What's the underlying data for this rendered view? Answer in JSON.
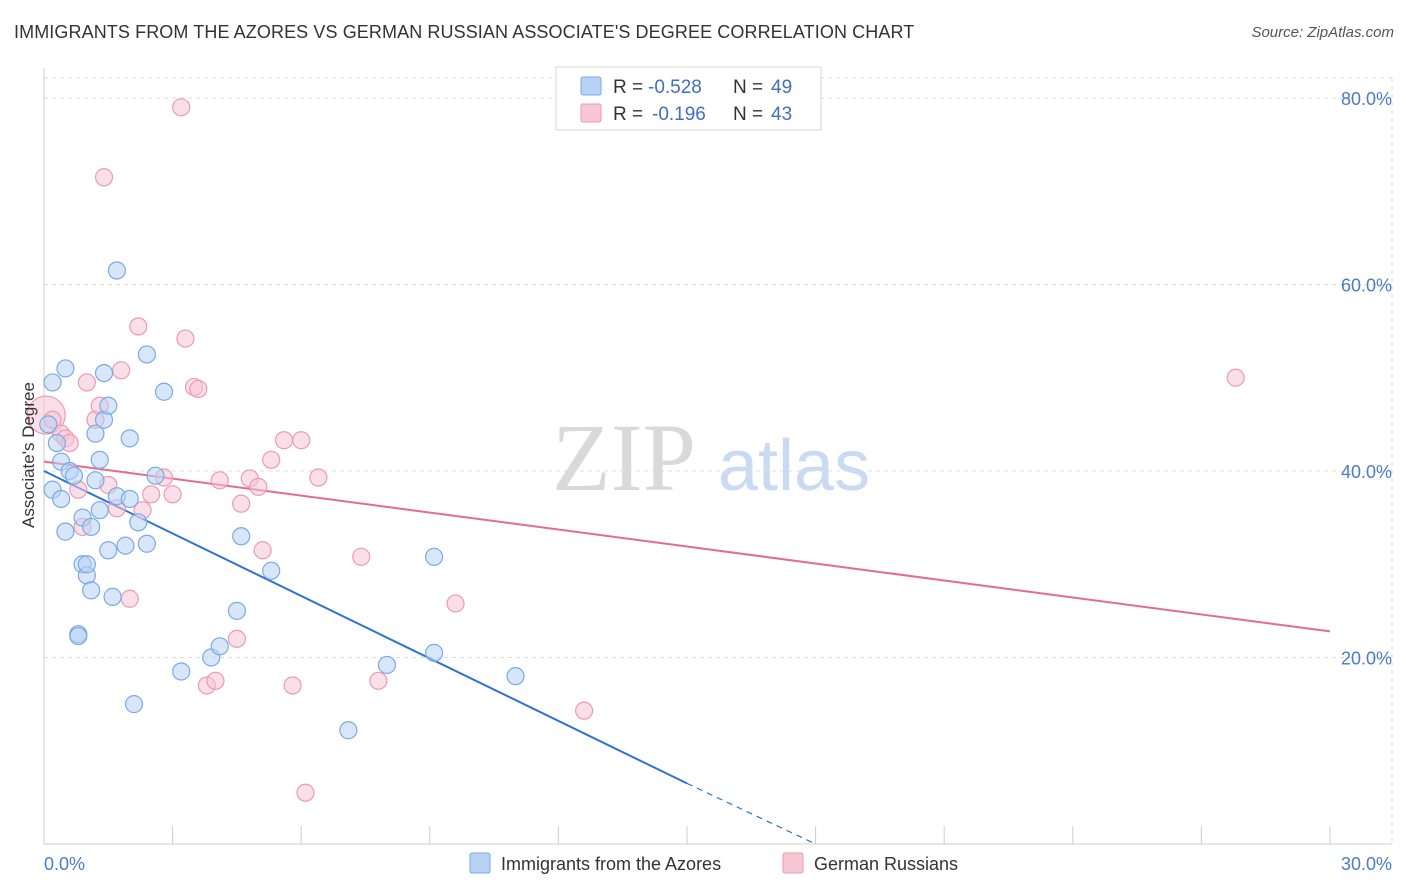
{
  "title": "IMMIGRANTS FROM THE AZORES VS GERMAN RUSSIAN ASSOCIATE'S DEGREE CORRELATION CHART",
  "source": "Source: ZipAtlas.com",
  "watermark": {
    "zip": "ZIP",
    "atlas": "atlas"
  },
  "colors": {
    "blue_fill": "#b8d2f4",
    "blue_stroke": "#7aaae6",
    "blue_line": "#2f73d0",
    "pink_fill": "#f8c5d5",
    "pink_stroke": "#ec9ab3",
    "pink_line": "#e56b94",
    "grid": "#dddddd",
    "tick_text": "#4a7cc9"
  },
  "legend": {
    "r_label": "R =",
    "n_label": "N =",
    "rows": [
      {
        "r": "-0.528",
        "n": "49"
      },
      {
        "r": "-0.196",
        "n": "43"
      }
    ]
  },
  "chart_data": {
    "type": "scatter",
    "title": "IMMIGRANTS FROM THE AZORES VS GERMAN RUSSIAN ASSOCIATE'S DEGREE CORRELATION CHART",
    "xlabel": "",
    "ylabel": "Associate's Degree",
    "xlim": [
      0,
      30
    ],
    "ylim": [
      0,
      80
    ],
    "x_tick_labels": [
      "0.0%",
      "30.0%"
    ],
    "y_ticks": [
      20,
      40,
      60,
      80
    ],
    "y_tick_labels": [
      "20.0%",
      "40.0%",
      "60.0%",
      "80.0%"
    ],
    "grid": true,
    "legend_position": "top-center",
    "series": [
      {
        "name": "Immigrants from the Azores",
        "r": -0.528,
        "n": 49,
        "trend": {
          "x0": 0,
          "y0": 40.0,
          "x1": 15.0,
          "y1": 6.5,
          "dash_to_x": 18.0,
          "dash_to_y": 0
        },
        "points": [
          [
            0.1,
            45.0
          ],
          [
            0.2,
            49.5
          ],
          [
            0.3,
            43.0
          ],
          [
            0.4,
            41.0
          ],
          [
            0.2,
            38.0
          ],
          [
            0.4,
            37.0
          ],
          [
            0.5,
            51.0
          ],
          [
            0.6,
            40.0
          ],
          [
            0.7,
            39.5
          ],
          [
            0.5,
            33.5
          ],
          [
            0.8,
            22.5
          ],
          [
            0.9,
            30.0
          ],
          [
            0.8,
            22.3
          ],
          [
            0.9,
            35.0
          ],
          [
            1.0,
            28.8
          ],
          [
            1.0,
            30.0
          ],
          [
            1.1,
            34.0
          ],
          [
            1.1,
            27.2
          ],
          [
            1.2,
            44.0
          ],
          [
            1.3,
            35.8
          ],
          [
            1.3,
            41.2
          ],
          [
            1.4,
            45.5
          ],
          [
            1.4,
            50.5
          ],
          [
            1.5,
            31.5
          ],
          [
            1.5,
            47.0
          ],
          [
            1.6,
            26.5
          ],
          [
            1.7,
            37.3
          ],
          [
            1.7,
            61.5
          ],
          [
            1.9,
            32.0
          ],
          [
            2.0,
            43.5
          ],
          [
            2.1,
            15.0
          ],
          [
            2.2,
            34.5
          ],
          [
            2.4,
            32.2
          ],
          [
            2.4,
            52.5
          ],
          [
            2.6,
            39.5
          ],
          [
            2.8,
            48.5
          ],
          [
            3.2,
            18.5
          ],
          [
            3.9,
            20.0
          ],
          [
            4.1,
            21.2
          ],
          [
            4.5,
            25.0
          ],
          [
            4.6,
            33.0
          ],
          [
            5.3,
            29.3
          ],
          [
            7.1,
            12.2
          ],
          [
            8.0,
            19.2
          ],
          [
            9.1,
            30.8
          ],
          [
            9.1,
            20.5
          ],
          [
            11.0,
            18.0
          ],
          [
            2.0,
            37.0
          ],
          [
            1.2,
            39.0
          ]
        ]
      },
      {
        "name": "German Russians",
        "r": -0.196,
        "n": 43,
        "trend": {
          "x0": 0,
          "y0": 41.0,
          "x1": 30.0,
          "y1": 22.8
        },
        "points": [
          [
            0.05,
            46.0
          ],
          [
            0.2,
            45.5
          ],
          [
            0.4,
            44.0
          ],
          [
            0.5,
            43.5
          ],
          [
            0.6,
            43.0
          ],
          [
            0.8,
            38.0
          ],
          [
            0.9,
            34.0
          ],
          [
            1.0,
            49.5
          ],
          [
            1.2,
            45.5
          ],
          [
            1.3,
            47.0
          ],
          [
            1.4,
            71.5
          ],
          [
            1.5,
            38.5
          ],
          [
            1.7,
            36.0
          ],
          [
            1.8,
            50.8
          ],
          [
            2.0,
            26.3
          ],
          [
            2.2,
            55.5
          ],
          [
            2.3,
            35.8
          ],
          [
            2.5,
            37.5
          ],
          [
            2.8,
            39.3
          ],
          [
            3.0,
            37.5
          ],
          [
            3.2,
            79.0
          ],
          [
            3.3,
            54.2
          ],
          [
            3.5,
            49.0
          ],
          [
            3.6,
            48.8
          ],
          [
            3.8,
            17.0
          ],
          [
            4.0,
            17.5
          ],
          [
            4.1,
            39.0
          ],
          [
            4.5,
            22.0
          ],
          [
            4.6,
            36.5
          ],
          [
            4.8,
            39.2
          ],
          [
            5.0,
            38.3
          ],
          [
            5.1,
            31.5
          ],
          [
            5.3,
            41.2
          ],
          [
            5.6,
            43.3
          ],
          [
            5.8,
            17.0
          ],
          [
            6.0,
            43.3
          ],
          [
            6.1,
            5.5
          ],
          [
            6.4,
            39.3
          ],
          [
            7.4,
            30.8
          ],
          [
            7.8,
            17.5
          ],
          [
            9.6,
            25.8
          ],
          [
            12.6,
            14.3
          ],
          [
            27.8,
            50.0
          ]
        ]
      }
    ]
  },
  "bottom_legend": [
    "Immigrants from the Azores",
    "German Russians"
  ]
}
